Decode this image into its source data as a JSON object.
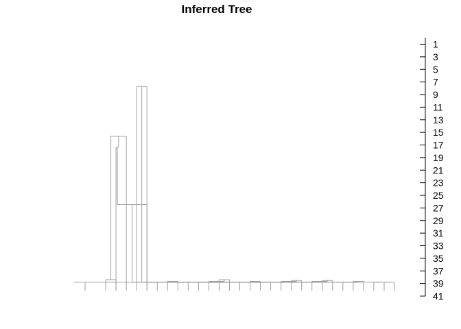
{
  "chart_data": {
    "type": "dendrogram",
    "title": "Inferred Tree",
    "orientation": "vertical",
    "axis": {
      "side": "right",
      "range": [
        1,
        41
      ],
      "ticks": [
        1,
        3,
        5,
        7,
        9,
        11,
        13,
        15,
        17,
        19,
        21,
        23,
        25,
        27,
        29,
        31,
        33,
        35,
        37,
        39,
        41
      ],
      "tick_labels": [
        "1",
        "3",
        "5",
        "7",
        "9",
        "11",
        "13",
        "15",
        "17",
        "19",
        "21",
        "23",
        "25",
        "27",
        "29",
        "31",
        "33",
        "35",
        "37",
        "39",
        "41"
      ]
    },
    "leaves": 31,
    "merges": [
      {
        "left": 3,
        "right": 4,
        "height": 1.3
      },
      {
        "left": 6,
        "right": 7,
        "height": 24.2
      },
      {
        "left": 5,
        "right": -1,
        "height": 18.3
      },
      {
        "left": 4,
        "right": -3,
        "height": 17.0
      },
      {
        "left": -4,
        "right": 7,
        "height": 10.2
      },
      {
        "left": 8,
        "right": -5,
        "height": 1.0
      },
      {
        "left": 9,
        "right": 10,
        "height": 1.1
      },
      {
        "left": 14,
        "right": 15,
        "height": 1.3
      },
      {
        "left": 13,
        "right": -8,
        "height": 1.1
      },
      {
        "left": 12,
        "right": -9,
        "height": 1.0
      },
      {
        "left": 11,
        "right": -10,
        "height": 1.0
      },
      {
        "left": 17,
        "right": 18,
        "height": 1.1
      },
      {
        "left": 16,
        "right": -12,
        "height": 1.0
      },
      {
        "left": 21,
        "right": 22,
        "height": 1.2
      },
      {
        "left": 20,
        "right": -14,
        "height": 1.1
      },
      {
        "left": 19,
        "right": -15,
        "height": 1.0
      },
      {
        "left": 24,
        "right": 25,
        "height": 1.2
      },
      {
        "left": 23,
        "right": -17,
        "height": 1.1
      },
      {
        "left": 27,
        "right": 28,
        "height": 1.1
      },
      {
        "left": 26,
        "right": -19,
        "height": 1.0
      },
      {
        "left": 30,
        "right": 31,
        "height": 1.0
      },
      {
        "left": 29,
        "right": -21,
        "height": 1.0
      },
      {
        "left": -16,
        "right": -18,
        "height": 1.0
      },
      {
        "left": -13,
        "right": -23,
        "height": 1.0
      },
      {
        "left": -11,
        "right": -24,
        "height": 1.0
      },
      {
        "left": -7,
        "right": -25,
        "height": 1.0
      },
      {
        "left": -6,
        "right": -20,
        "height": 1.0
      },
      {
        "left": -2,
        "right": -22,
        "height": 1.0
      },
      {
        "left": -27,
        "right": -28,
        "height": 1.0
      },
      {
        "left": -26,
        "right": -29,
        "height": 1.0
      },
      {
        "left": 1,
        "right": -30,
        "height": 1.0
      }
    ],
    "grid": false,
    "legend": "none",
    "colors": {
      "branches": "#9e9e9e",
      "axis": "#000000",
      "text": "#000000"
    }
  }
}
